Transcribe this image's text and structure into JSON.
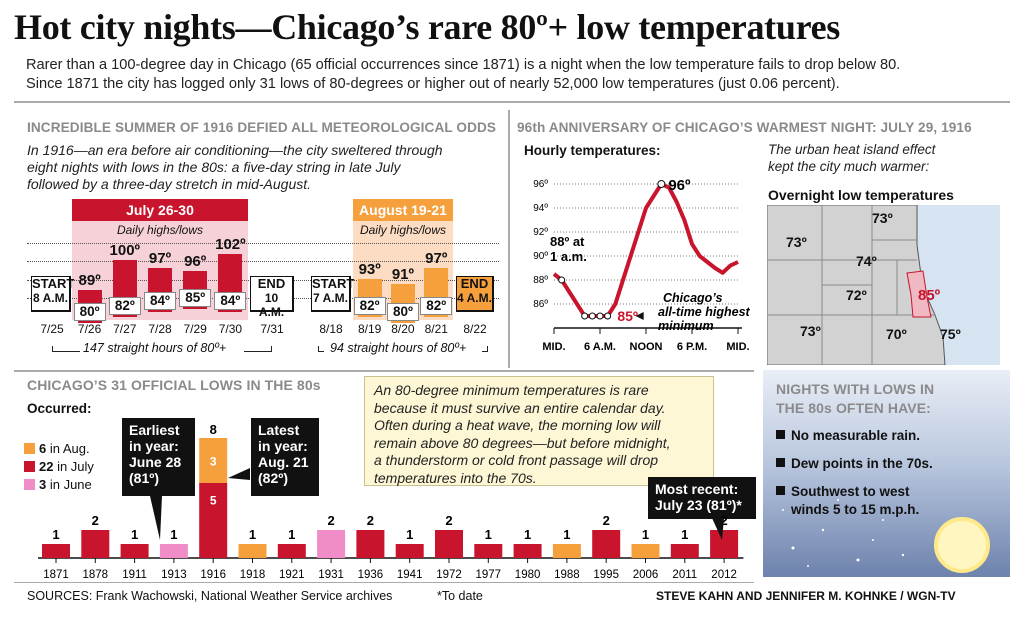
{
  "header": {
    "title": "Hot city nights—Chicago’s rare 80º+ low temperatures",
    "intro_line1": "Rarer than a 100-degree day in Chicago (65 official occurrences since 1871) is a night when the low temperature fails to drop below 80.",
    "intro_line2": "Since 1871 the city has logged only 31 lows of 80-degrees or higher out of nearly 52,000 low temperatures (just 0.06 percent)."
  },
  "summer1916": {
    "heading": "INCREDIBLE SUMMER OF 1916 DEFIED ALL METEOROLOGICAL ODDS",
    "text_line1": "In 1916—an era before air conditioning—the city sweltered through",
    "text_line2": "eight nights with lows in the 80s: a five-day string in late July",
    "text_line3": "followed by a three-day stretch in mid-August.",
    "july_banner": "July 26-30",
    "aug_banner": "August 19-21",
    "daily_label": "Daily highs/lows",
    "start_label": "START",
    "end_label": "END",
    "july_start_time": "8 A.M.",
    "july_end_time": "10 A.M.",
    "aug_start_time": "7 A.M.",
    "aug_end_time": "4 A.M.",
    "july_start_date": "7/25",
    "july_end_date": "7/31",
    "aug_start_date": "8/18",
    "aug_end_date": "8/22",
    "july_span": "147 straight hours of 80º+",
    "aug_span": "94 straight hours of 80º+"
  },
  "chart_data": [
    {
      "type": "bar",
      "title": "July 26-30",
      "subtitle": "Daily highs/lows",
      "categories": [
        "7/26",
        "7/27",
        "7/28",
        "7/29",
        "7/30"
      ],
      "series": [
        {
          "name": "Daily highs",
          "values": [
            89,
            100,
            97,
            96,
            102
          ]
        },
        {
          "name": "Daily lows",
          "values": [
            80,
            82,
            84,
            85,
            84
          ]
        }
      ],
      "labels_high": [
        "89º",
        "100º",
        "97º",
        "96º",
        "102º"
      ],
      "labels_low": [
        "80º",
        "82º",
        "84º",
        "85º",
        "84º"
      ],
      "ylim": [
        72,
        106
      ]
    },
    {
      "type": "bar",
      "title": "August 19-21",
      "subtitle": "Daily highs/lows",
      "categories": [
        "8/19",
        "8/20",
        "8/21"
      ],
      "series": [
        {
          "name": "Daily highs",
          "values": [
            93,
            91,
            97
          ]
        },
        {
          "name": "Daily lows",
          "values": [
            82,
            80,
            82
          ]
        }
      ],
      "labels_high": [
        "93º",
        "91º",
        "97º"
      ],
      "labels_low": [
        "82º",
        "80º",
        "82º"
      ],
      "ylim": [
        72,
        106
      ]
    },
    {
      "type": "line",
      "title": "Hourly temperatures:",
      "ylim": [
        84,
        97
      ],
      "yticks": [
        86,
        88,
        90,
        92,
        94,
        96
      ],
      "ytick_labels": [
        "86º",
        "88º",
        "90º",
        "92º",
        "94º",
        "96º"
      ],
      "xticks": [
        0,
        6,
        12,
        18,
        24
      ],
      "xtick_labels": [
        "MID.",
        "6 A.M.",
        "NOON",
        "6 P.M.",
        "MID."
      ],
      "x": [
        0,
        1,
        2,
        3,
        4,
        5,
        6,
        7,
        8,
        9,
        10,
        11,
        12,
        13,
        14,
        15,
        16,
        17,
        18,
        19,
        20,
        21,
        22,
        23,
        24
      ],
      "y": [
        88.5,
        88,
        87,
        86,
        85,
        85,
        85,
        85,
        86,
        88,
        90,
        92,
        94,
        95,
        96,
        95.7,
        94.5,
        93,
        91,
        90,
        89.5,
        89,
        88.6,
        89.2,
        89.5
      ],
      "annotations": {
        "start": "88º at",
        "start2": "1 a.m.",
        "peak": "96º",
        "low": "85º",
        "record_line1": "Chicago’s",
        "record_line2": "all-time highest",
        "record_line3": "minimum"
      }
    },
    {
      "type": "bar",
      "title": "Occurred:",
      "categories": [
        "1871",
        "1878",
        "1911",
        "1913",
        "1916",
        "1918",
        "1921",
        "1931",
        "1936",
        "1941",
        "1972",
        "1977",
        "1980",
        "1988",
        "1995",
        "2006",
        "2011",
        "2012"
      ],
      "values": [
        1,
        2,
        1,
        1,
        8,
        1,
        1,
        2,
        2,
        1,
        2,
        1,
        1,
        1,
        2,
        1,
        1,
        2
      ],
      "colors": [
        "#c8142c",
        "#c8142c",
        "#c8142c",
        "#f08cc8",
        "stack",
        "#f5a03c",
        "#c8142c",
        "#f08cc8",
        "#c8142c",
        "#c8142c",
        "#c8142c",
        "#c8142c",
        "#c8142c",
        "#f5a03c",
        "#c8142c",
        "#f5a03c",
        "#c8142c",
        "#c8142c"
      ],
      "stack_1916": {
        "july": 5,
        "august": 3
      },
      "legend": [
        {
          "count": "6",
          "label": "in Aug.",
          "color": "#f5a03c"
        },
        {
          "count": "22",
          "label": "in July",
          "color": "#c8142c"
        },
        {
          "count": "3",
          "label": "in June",
          "color": "#f08cc8"
        }
      ]
    }
  ],
  "warmest_night": {
    "heading": "96th ANNIVERSARY OF CHICAGO’S WARMEST NIGHT: JULY 29, 1916",
    "hourly_title": "Hourly temperatures:",
    "heat_text1": "The urban heat island effect",
    "heat_text2": "kept the city much warmer:",
    "map_title": "Overnight low temperatures",
    "map_temps": [
      "73º",
      "73º",
      "74º",
      "72º",
      "85º",
      "73º",
      "70º",
      "75º"
    ]
  },
  "lows80s": {
    "heading": "CHICAGO’S 31 OFFICIAL LOWS IN THE 80s",
    "occurred": "Occurred:",
    "note": "An 80-degree minimum temperatures is rare because it must survive an entire calendar day. Often during a heat wave, the morning low will remain above 80 degrees—but before midnight, a thunderstorm or cold front passage will drop temperatures into the 70s.",
    "note_lines": [
      "An 80-degree minimum temperatures is rare",
      "because it must survive an entire calendar day.",
      "Often during a heat wave, the morning low will",
      "remain above 80 degrees—but before midnight,",
      "a thunderstorm or cold front passage will drop",
      "temperatures into the 70s."
    ],
    "earliest": [
      "Earliest",
      "in year:",
      "June 28",
      "(81º)"
    ],
    "latest": [
      "Latest",
      "in year:",
      "Aug. 21",
      "(82º)"
    ],
    "recent": [
      "Most recent:",
      "July 23 (81º)*"
    ],
    "stack_top": "8",
    "stack_aug": "3",
    "stack_july": "5"
  },
  "nights": {
    "heading1": "NIGHTS WITH LOWS IN",
    "heading2": "THE 80s OFTEN HAVE:",
    "b1": "No measurable rain.",
    "b2": "Dew points in the 70s.",
    "b3a": "Southwest to west",
    "b3b": "winds 5 to 15 m.p.h."
  },
  "footer": {
    "sources": "SOURCES: Frank Wachowski, National Weather Service archives",
    "todate": "*To date",
    "credit": "STEVE KAHN AND JENNIFER M. KOHNKE / WGN-TV"
  },
  "colors": {
    "red": "#c8142c",
    "orange": "#f5a03c",
    "pink": "#f08cc8"
  }
}
